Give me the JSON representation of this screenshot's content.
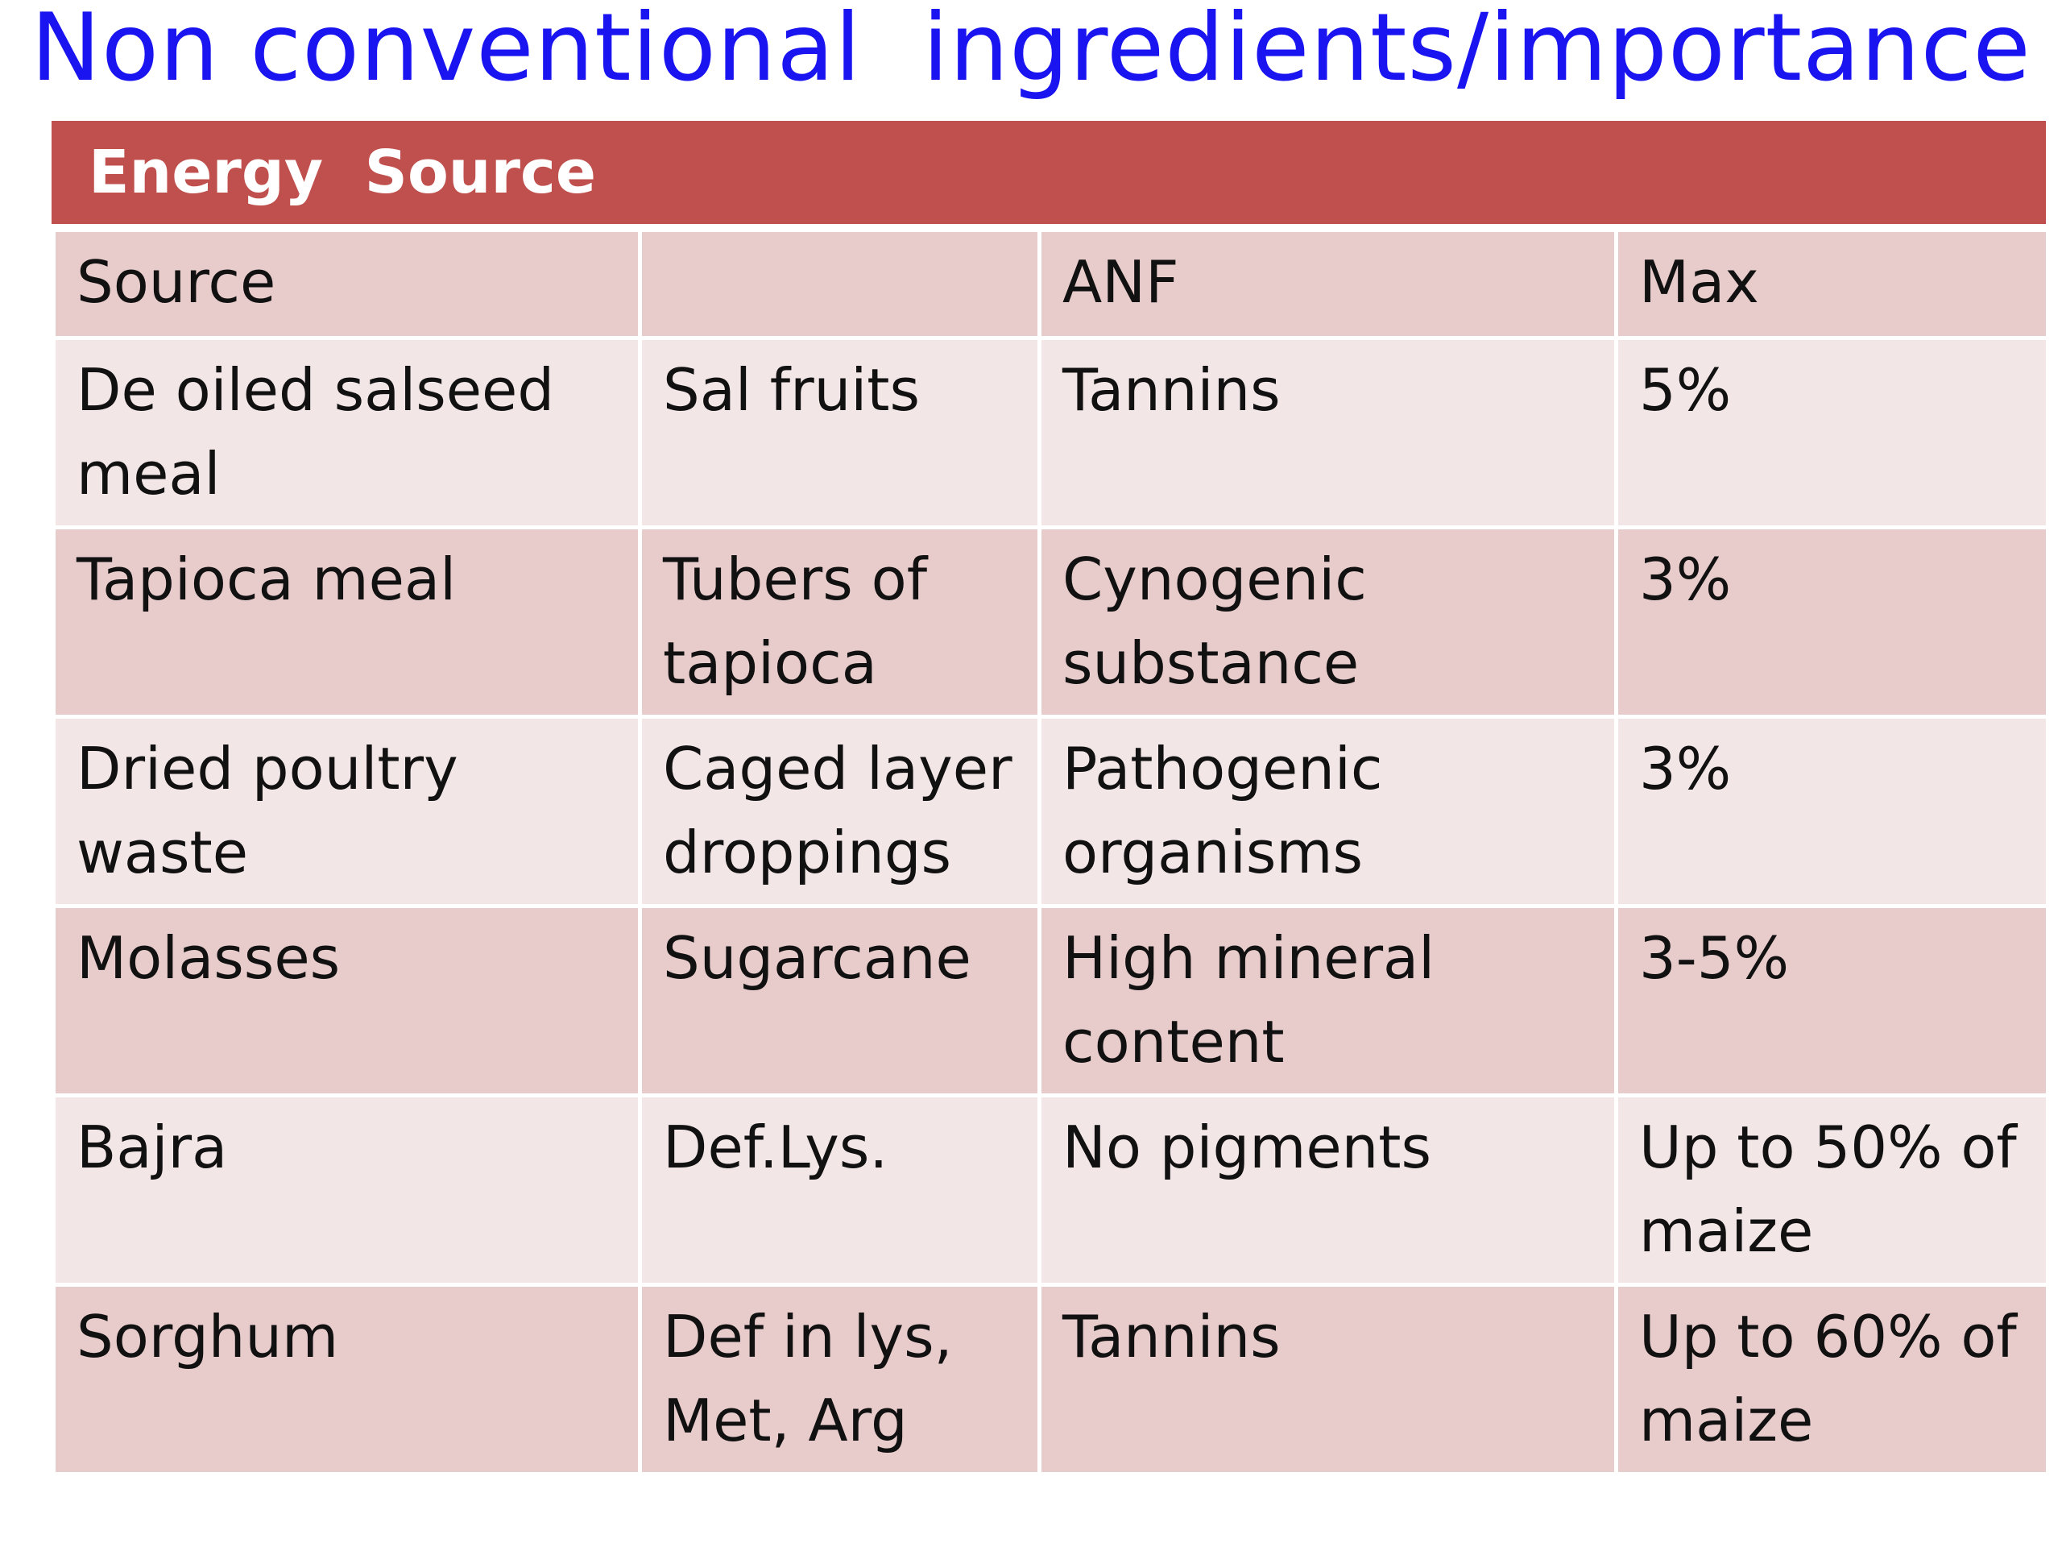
{
  "title": "Non conventional  ingredients/importance",
  "section_header": "Energy  Source",
  "columns": [
    "Source",
    "",
    "ANF",
    "Max"
  ],
  "rows": [
    [
      "De oiled salseed meal",
      "Sal fruits",
      "Tannins",
      "5%"
    ],
    [
      "Tapioca meal",
      "Tubers of tapioca",
      "Cynogenic substance",
      "3%"
    ],
    [
      "Dried poultry waste",
      "Caged layer droppings",
      "Pathogenic organisms",
      "3%"
    ],
    [
      "Molasses",
      "Sugarcane",
      "High mineral content",
      "3-5%"
    ],
    [
      "Bajra",
      "Def.Lys.",
      "No pigments",
      "Up to 50% of maize"
    ],
    [
      "Sorghum",
      "Def in lys, Met, Arg",
      "Tannins",
      "Up to 60% of maize"
    ]
  ],
  "colors": {
    "title": "#1a14f0",
    "header_band": "#c0504d",
    "row_dark": "#e8cccb",
    "row_light": "#f3e6e6"
  }
}
